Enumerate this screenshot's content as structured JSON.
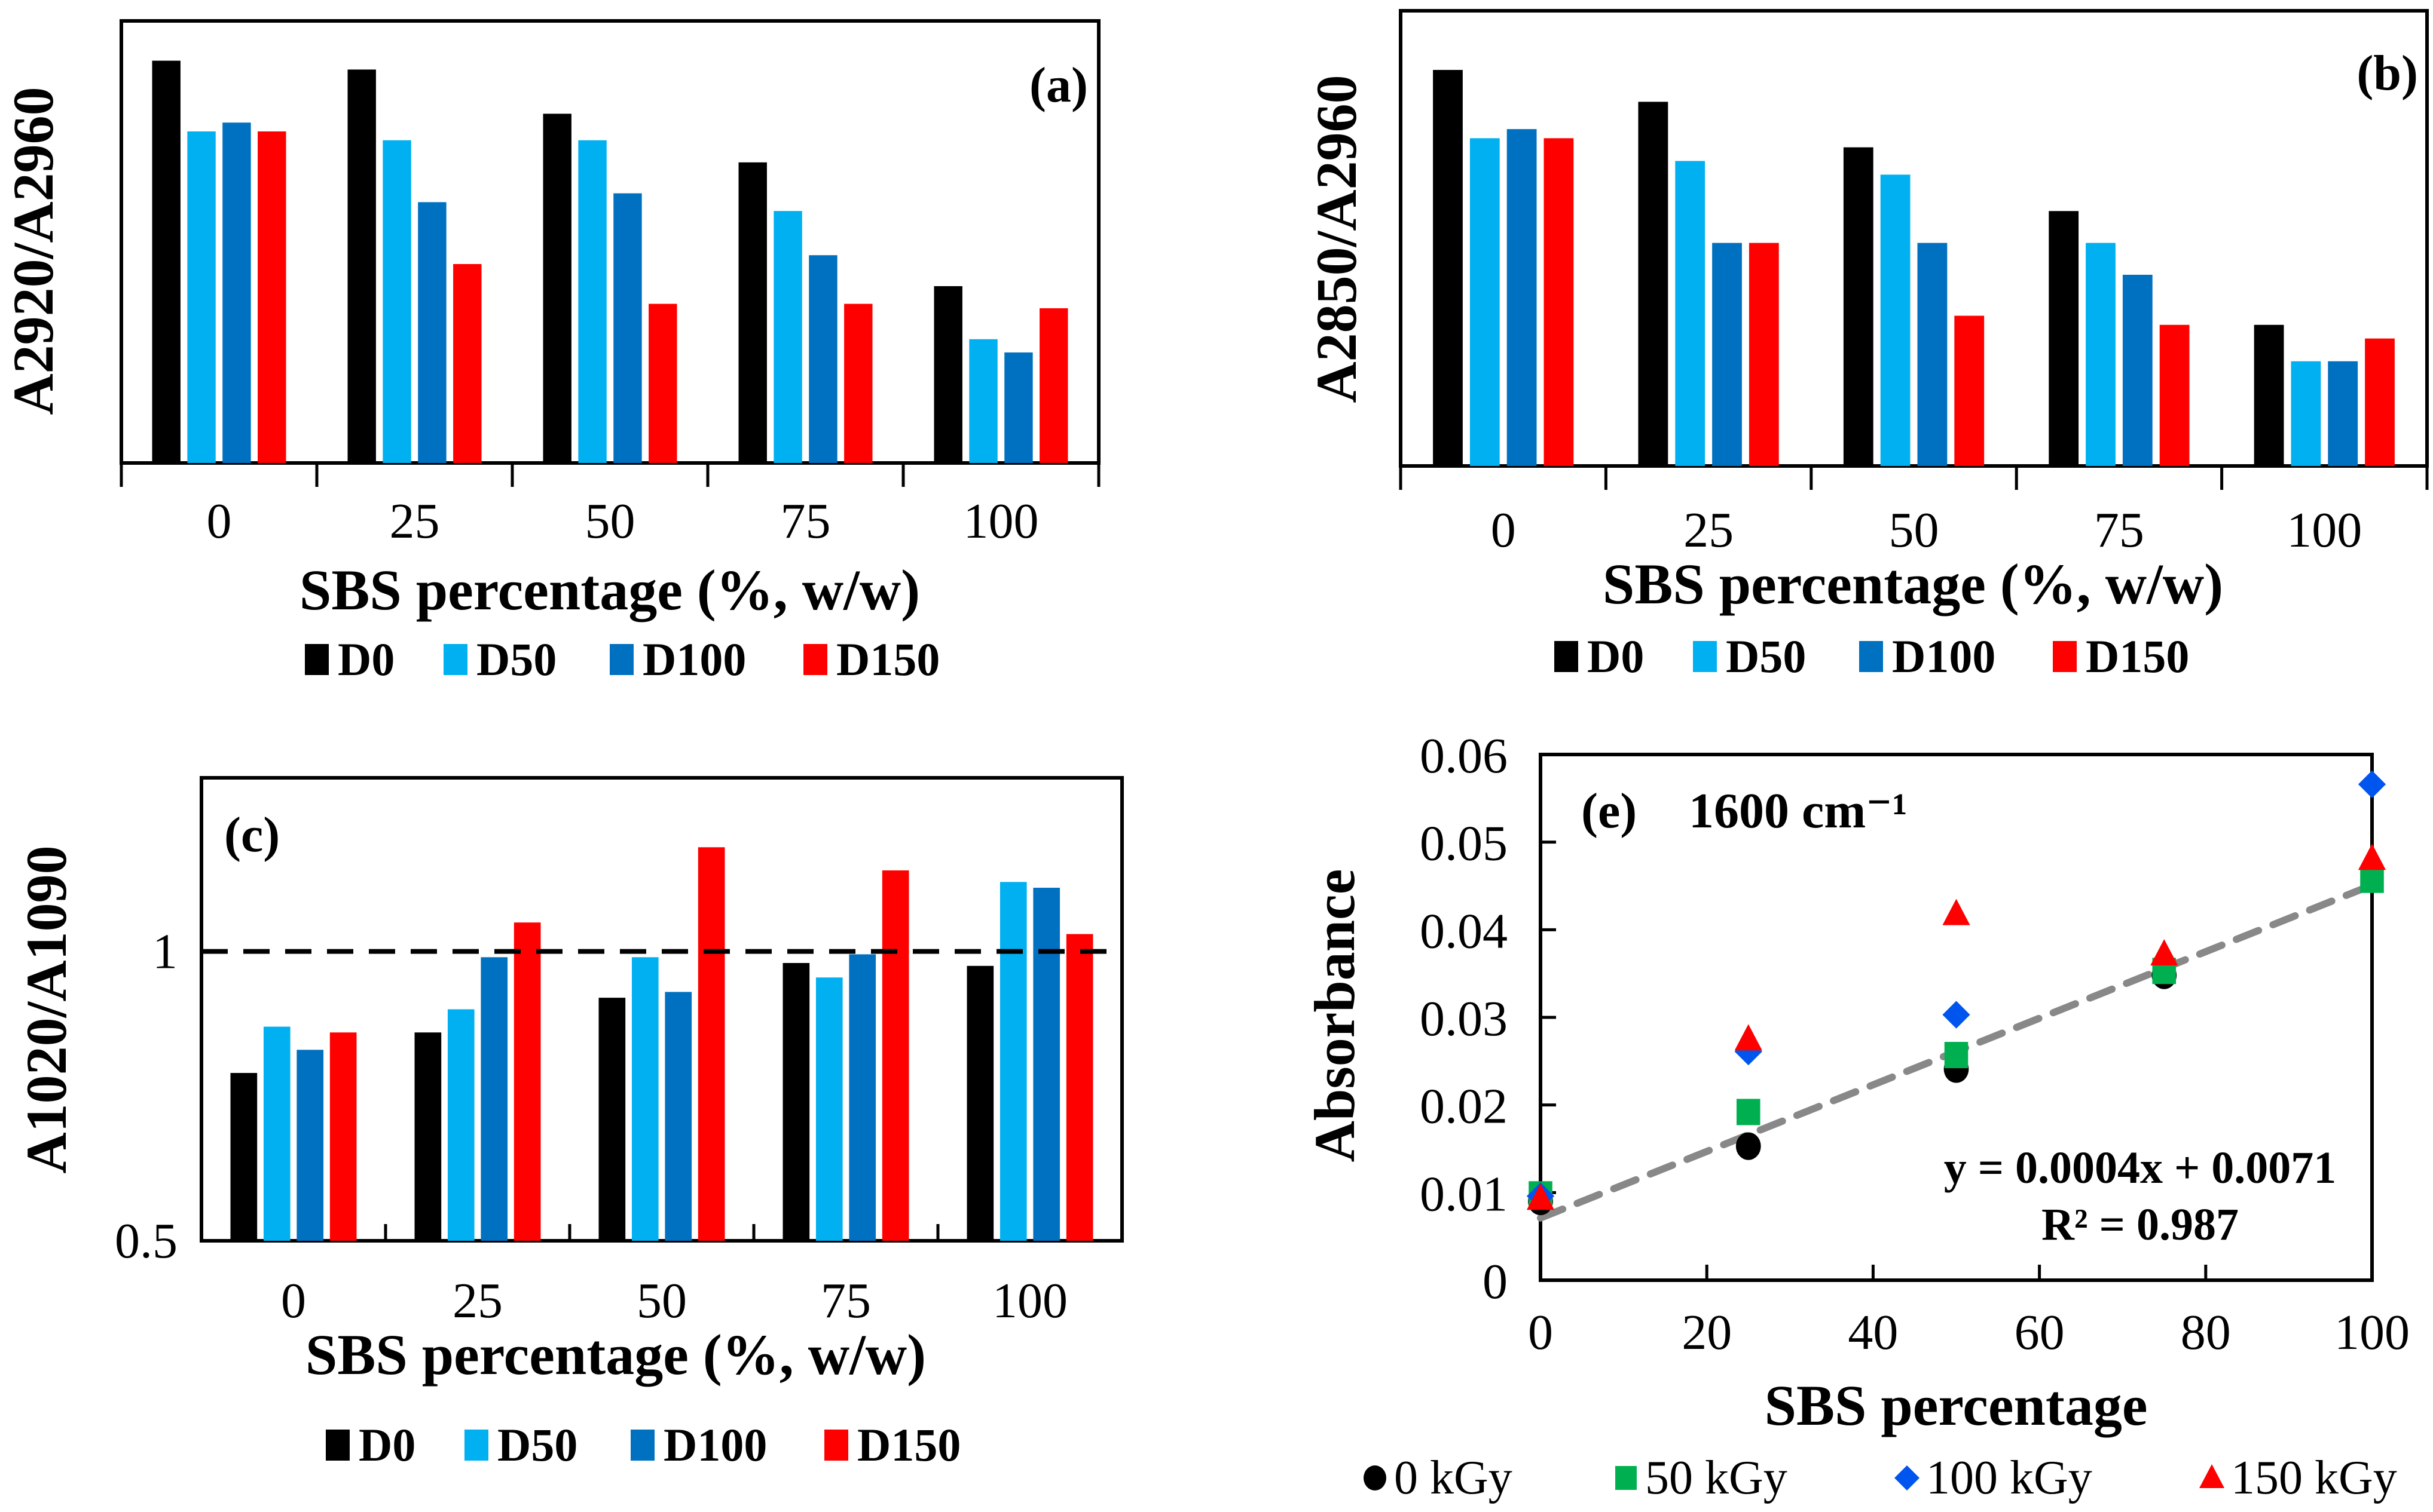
{
  "figure": {
    "colors": {
      "D0": "#000000",
      "D50": "#00B0F0",
      "D100": "#0070C0",
      "D150": "#FF0000",
      "kGy0": "#000000",
      "kGy50": "#00B050",
      "kGy100": "#0055EE",
      "kGy150": "#FF0000",
      "trendline": "#888888"
    }
  },
  "chart_data": [
    {
      "id": "a",
      "type": "bar",
      "panel_label": "(a)",
      "title": "",
      "xlabel": "SBS percentage (%, w/w)",
      "ylabel": "A2920/A2960",
      "y_tick_labels_shown": false,
      "y_units": "relative (fraction of axis height; no tick labels printed)",
      "ylim": [
        0,
        1
      ],
      "categories": [
        "0",
        "25",
        "50",
        "75",
        "100"
      ],
      "series": [
        {
          "name": "D0",
          "values": [
            0.91,
            0.89,
            0.79,
            0.68,
            0.4
          ]
        },
        {
          "name": "D50",
          "values": [
            0.75,
            0.73,
            0.73,
            0.57,
            0.28
          ]
        },
        {
          "name": "D100",
          "values": [
            0.77,
            0.59,
            0.61,
            0.47,
            0.25
          ]
        },
        {
          "name": "D150",
          "values": [
            0.75,
            0.45,
            0.36,
            0.36,
            0.35
          ]
        }
      ],
      "legend": [
        "D0",
        "D50",
        "D100",
        "D150"
      ],
      "legend_position": "bottom",
      "grid": false
    },
    {
      "id": "b",
      "type": "bar",
      "panel_label": "(b)",
      "title": "",
      "xlabel": "SBS percentage (%, w/w)",
      "ylabel": "A2850/A2960",
      "y_tick_labels_shown": false,
      "y_units": "relative (fraction of axis height; no tick labels printed)",
      "ylim": [
        0,
        1
      ],
      "categories": [
        "0",
        "25",
        "50",
        "75",
        "100"
      ],
      "series": [
        {
          "name": "D0",
          "values": [
            0.87,
            0.8,
            0.7,
            0.56,
            0.31
          ]
        },
        {
          "name": "D50",
          "values": [
            0.72,
            0.67,
            0.64,
            0.49,
            0.23
          ]
        },
        {
          "name": "D100",
          "values": [
            0.74,
            0.49,
            0.49,
            0.42,
            0.23
          ]
        },
        {
          "name": "D150",
          "values": [
            0.72,
            0.49,
            0.33,
            0.31,
            0.28
          ]
        }
      ],
      "legend": [
        "D0",
        "D50",
        "D100",
        "D150"
      ],
      "legend_position": "bottom",
      "grid": false
    },
    {
      "id": "c",
      "type": "bar",
      "panel_label": "(c)",
      "title": "",
      "xlabel": "SBS percentage (%, w/w)",
      "ylabel": "A1020/A1090",
      "ylim": [
        0.5,
        1.3
      ],
      "yticks": [
        0.5,
        1
      ],
      "ytick_labels": [
        "0.5",
        "1"
      ],
      "reference_line": {
        "y": 1,
        "style": "dashed"
      },
      "categories": [
        "0",
        "25",
        "50",
        "75",
        "100"
      ],
      "series": [
        {
          "name": "D0",
          "values": [
            0.79,
            0.86,
            0.92,
            0.98,
            0.975
          ]
        },
        {
          "name": "D50",
          "values": [
            0.87,
            0.9,
            0.99,
            0.955,
            1.12
          ]
        },
        {
          "name": "D100",
          "values": [
            0.83,
            0.99,
            0.93,
            0.995,
            1.11
          ]
        },
        {
          "name": "D150",
          "values": [
            0.86,
            1.05,
            1.18,
            1.14,
            1.03
          ]
        }
      ],
      "legend": [
        "D0",
        "D50",
        "D100",
        "D150"
      ],
      "legend_position": "bottom",
      "grid": false
    },
    {
      "id": "e",
      "type": "scatter",
      "panel_label": "(e)",
      "title": "1600 cm⁻¹",
      "xlabel": "SBS percentage",
      "ylabel": "Absorbance",
      "xlim": [
        0,
        100
      ],
      "ylim": [
        0,
        0.06
      ],
      "xticks": [
        0,
        20,
        40,
        60,
        80,
        100
      ],
      "xtick_labels": [
        "0",
        "20",
        "40",
        "60",
        "80",
        "100"
      ],
      "yticks": [
        0,
        0.01,
        0.02,
        0.03,
        0.04,
        0.05,
        0.06
      ],
      "ytick_labels": [
        "0",
        "0.01",
        "0.02",
        "0.03",
        "0.04",
        "0.05",
        "0.06"
      ],
      "x": [
        0,
        25,
        50,
        75,
        100
      ],
      "series": [
        {
          "name": "0 kGy",
          "marker": "circle",
          "values": [
            0.009,
            0.0153,
            0.0241,
            0.0348,
            null
          ]
        },
        {
          "name": "50 kGy",
          "marker": "square",
          "values": [
            0.0098,
            0.0192,
            0.0257,
            0.0353,
            0.0457
          ]
        },
        {
          "name": "100 kGy",
          "marker": "diamond",
          "values": [
            0.0096,
            0.0261,
            0.0303,
            null,
            0.0566
          ]
        },
        {
          "name": "150 kGy",
          "marker": "triangle",
          "values": [
            0.0093,
            0.0275,
            0.0418,
            0.0372,
            0.0481
          ]
        }
      ],
      "trendline": {
        "slope": 0.0004,
        "intercept": 0.0071,
        "x_range": [
          0,
          100
        ],
        "end_value_at_100": 0.0451,
        "style": "dashed",
        "equation_label": "y = 0.0004x + 0.0071",
        "r2_label": "R² = 0.987"
      },
      "legend": [
        "0 kGy",
        "50 kGy",
        "100 kGy",
        "150 kGy"
      ],
      "legend_position": "bottom",
      "grid": false
    }
  ]
}
